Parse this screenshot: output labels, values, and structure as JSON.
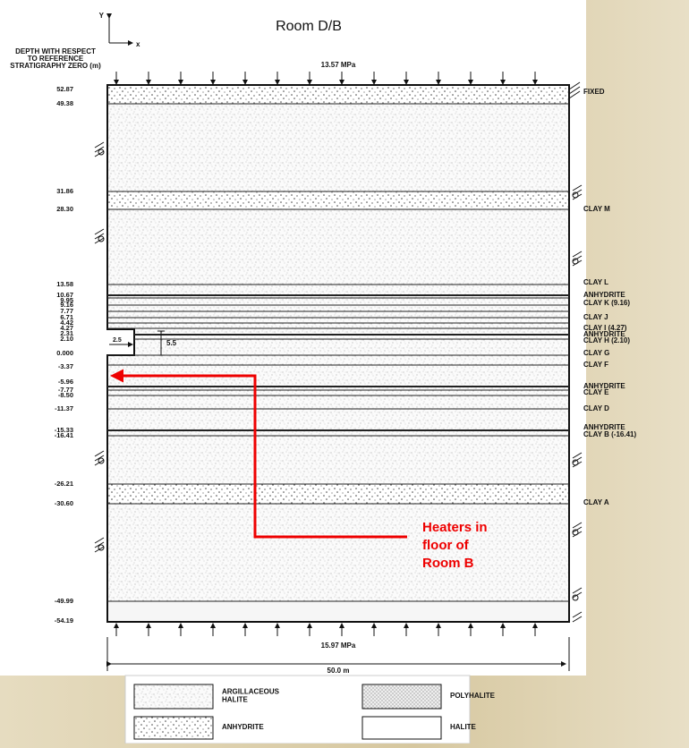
{
  "title": "Room D/B",
  "axes": {
    "y": "Y",
    "x": "x"
  },
  "depth_caption": [
    "DEPTH WITH RESPECT",
    "TO REFERENCE",
    "STRATIGRAPHY ZERO (m)"
  ],
  "top_load": "13.57 MPa",
  "bottom_load": "15.97 MPa",
  "width": "50.0 m",
  "boundary": "FIXED",
  "depths": [
    "52.87",
    "49.38",
    "31.86",
    "28.30",
    "13.58",
    "10.67",
    "9.95",
    "9.16",
    "7.77",
    "6.71",
    "4.42",
    "4.27",
    "2.31",
    "2.10",
    "0.000",
    "-3.37",
    "-5.96",
    "-7.77",
    "-8.50",
    "-11.37",
    "-15.33",
    "-16.41",
    "-26.21",
    "-30.60",
    "-49.99",
    "-54.19"
  ],
  "layers": [
    "CLAY M",
    "CLAY L",
    "ANHYDRITE",
    "CLAY K (9.16)",
    "CLAY J",
    "CLAY I (4.27)",
    "ANHYDRITE",
    "CLAY H (2.10)",
    "CLAY G",
    "CLAY F",
    "ANHYDRITE",
    "CLAY E",
    "CLAY D",
    "ANHYDRITE",
    "CLAY B (-16.41)",
    "CLAY A"
  ],
  "room_dims": [
    "5.5",
    "2.5"
  ],
  "annotation": [
    "Heaters in",
    "floor of",
    "Room B"
  ],
  "legend": [
    {
      "label": [
        "ARGILLACEOUS",
        "HALITE"
      ]
    },
    {
      "label": [
        "POLYHALITE"
      ]
    },
    {
      "label": [
        "ANHYDRITE"
      ]
    },
    {
      "label": [
        "HALITE"
      ]
    }
  ]
}
